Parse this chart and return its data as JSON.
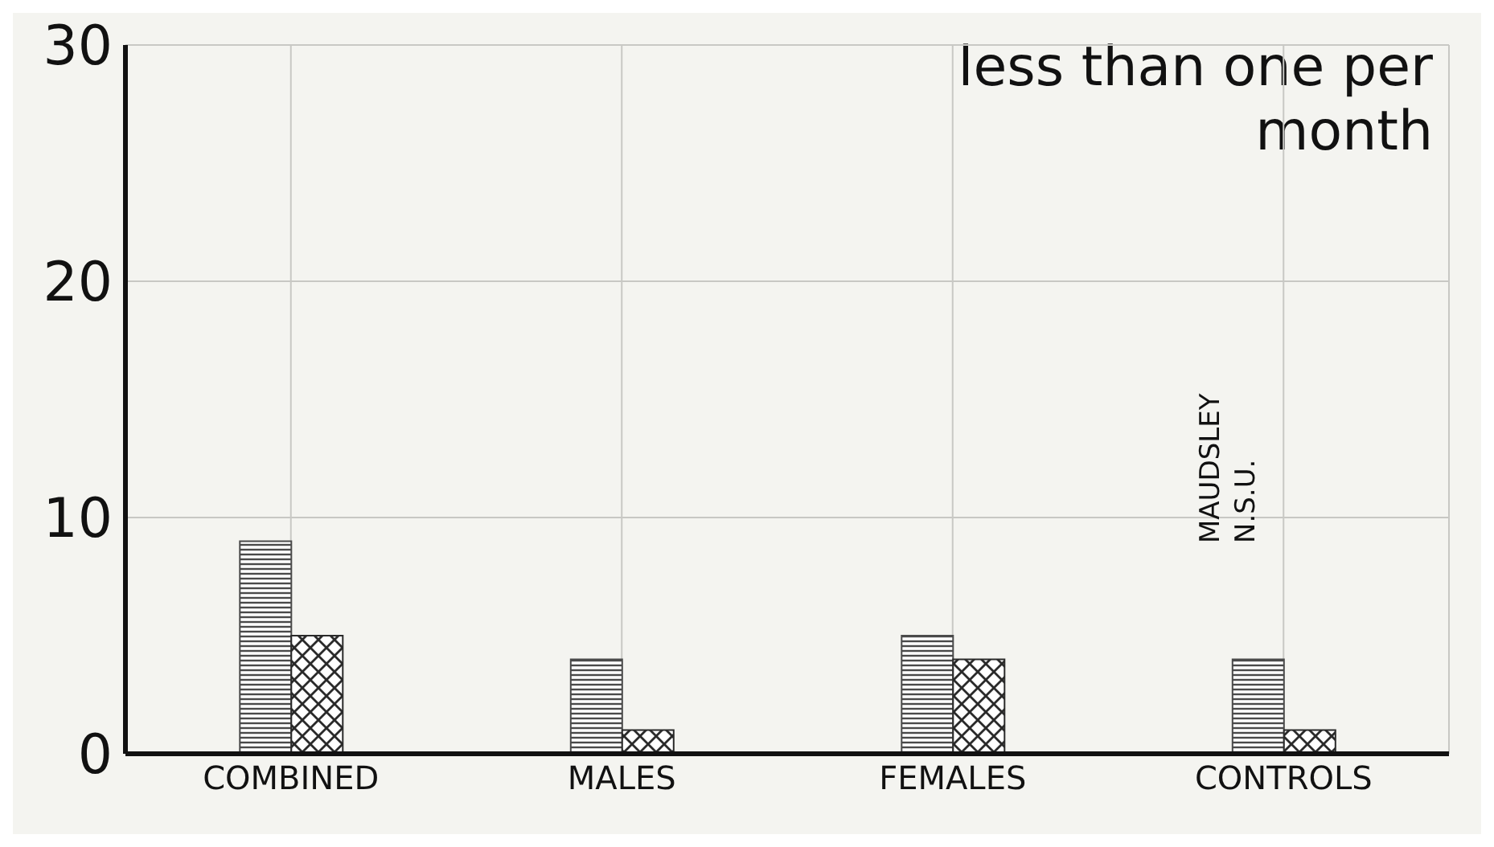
{
  "chart_data": {
    "type": "bar",
    "title": "less than one per month",
    "categories": [
      "COMBINED",
      "MALES",
      "FEMALES",
      "CONTROLS"
    ],
    "series": [
      {
        "color": "#4a4a4a",
        "values": [
          9,
          4,
          5,
          4
        ]
      },
      {
        "color": "#2a2a2a",
        "values": [
          5,
          1,
          4,
          1
        ]
      }
    ],
    "ylim": [
      0,
      30
    ],
    "yticks": [
      0,
      10,
      20,
      30
    ],
    "grid": true,
    "annotations": [
      "MAUDSLEY",
      "N.S.U."
    ]
  }
}
